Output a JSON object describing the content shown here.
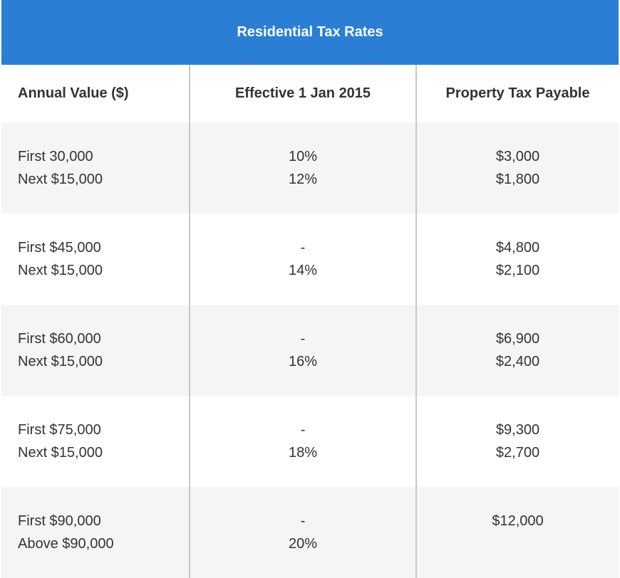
{
  "title": "Residential Tax Rates",
  "headers": [
    "Annual Value ($)",
    "Effective 1 Jan 2015",
    "Property Tax Payable"
  ],
  "rows": [
    {
      "values": [
        "First 30,000",
        "Next $15,000"
      ],
      "rates": [
        "10%",
        "12%"
      ],
      "tax": [
        "$3,000",
        "$1,800"
      ]
    },
    {
      "values": [
        "First $45,000",
        "Next $15,000"
      ],
      "rates": [
        "-",
        "14%"
      ],
      "tax": [
        "$4,800",
        "$2,100"
      ]
    },
    {
      "values": [
        "First $60,000",
        "Next $15,000"
      ],
      "rates": [
        "-",
        "16%"
      ],
      "tax": [
        "$6,900",
        "$2,400"
      ]
    },
    {
      "values": [
        "First $75,000",
        "Next $15,000"
      ],
      "rates": [
        "-",
        "18%"
      ],
      "tax": [
        "$9,300",
        "$2,700"
      ]
    },
    {
      "values": [
        "First $90,000",
        "Above $90,000"
      ],
      "rates": [
        "-",
        "20%"
      ],
      "tax": [
        "$12,000",
        ""
      ]
    }
  ],
  "colors": {
    "header_bg": "#2a7fd4",
    "stripe_bg": "#f5f5f5",
    "text": "#333333",
    "divider": "#c8c8c8"
  }
}
